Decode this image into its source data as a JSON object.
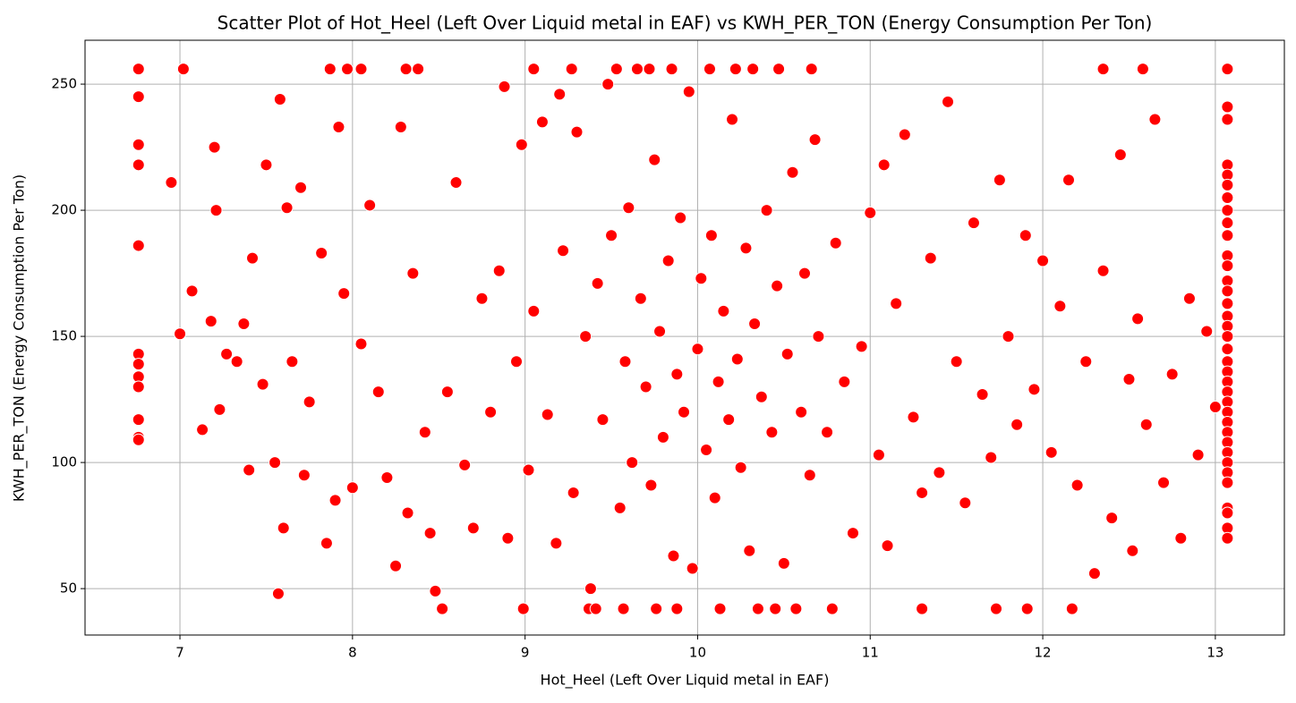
{
  "chart_data": {
    "type": "scatter",
    "title": "Scatter Plot of Hot_Heel (Left Over Liquid metal in EAF) vs KWH_PER_TON (Energy Consumption Per Ton)",
    "x_label": "Hot_Heel (Left Over Liquid metal in EAF)",
    "y_label": "KWH_PER_TON (Energy Consumption Per Ton)",
    "color": "#ff0000",
    "grid": true,
    "xlim": [
      6.45,
      13.4
    ],
    "ylim": [
      31.6,
      267.4
    ],
    "xticks": [
      7,
      8,
      9,
      10,
      11,
      12,
      13
    ],
    "yticks": [
      50,
      100,
      150,
      200,
      250
    ],
    "x": [
      6.76,
      6.76,
      6.76,
      6.76,
      6.76,
      6.76,
      6.76,
      6.76,
      6.76,
      6.76,
      6.76,
      6.76,
      13.07,
      13.07,
      13.07,
      13.07,
      13.07,
      13.07,
      13.07,
      13.07,
      13.07,
      13.07,
      13.07,
      13.07,
      13.07,
      13.07,
      13.07,
      13.07,
      13.07,
      13.07,
      13.07,
      13.07,
      13.07,
      13.07,
      13.07,
      13.07,
      13.07,
      13.07,
      13.07,
      13.07,
      13.07,
      13.07,
      13.07,
      13.07,
      13.07,
      13.07,
      13.07,
      13.07,
      7.02,
      7.87,
      7.97,
      8.05,
      8.31,
      8.38,
      9.05,
      9.27,
      9.53,
      9.65,
      9.72,
      9.85,
      10.07,
      10.22,
      10.32,
      10.47,
      10.66,
      12.35,
      12.58,
      8.52,
      8.99,
      9.37,
      9.41,
      9.57,
      9.76,
      9.88,
      10.13,
      10.35,
      10.45,
      10.57,
      10.78,
      11.3,
      11.73,
      11.91,
      12.17,
      6.95,
      7.0,
      7.07,
      7.13,
      7.18,
      7.2,
      7.21,
      7.23,
      7.27,
      7.33,
      7.37,
      7.4,
      7.42,
      7.48,
      7.5,
      7.55,
      7.57,
      7.58,
      7.6,
      7.62,
      7.65,
      7.7,
      7.72,
      7.75,
      7.82,
      7.85,
      7.9,
      7.92,
      7.95,
      8.0,
      8.05,
      8.1,
      8.15,
      8.2,
      8.25,
      8.28,
      8.32,
      8.35,
      8.42,
      8.45,
      8.48,
      8.55,
      8.6,
      8.65,
      8.7,
      8.75,
      8.8,
      8.85,
      8.88,
      8.9,
      8.95,
      8.98,
      9.02,
      9.05,
      9.1,
      9.13,
      9.18,
      9.2,
      9.22,
      9.28,
      9.3,
      9.35,
      9.38,
      9.42,
      9.45,
      9.48,
      9.5,
      9.55,
      9.58,
      9.6,
      9.62,
      9.67,
      9.7,
      9.73,
      9.75,
      9.78,
      9.8,
      9.83,
      9.86,
      9.88,
      9.9,
      9.92,
      9.95,
      9.97,
      10.0,
      10.02,
      10.05,
      10.08,
      10.1,
      10.12,
      10.15,
      10.18,
      10.2,
      10.23,
      10.25,
      10.28,
      10.3,
      10.33,
      10.37,
      10.4,
      10.43,
      10.46,
      10.5,
      10.52,
      10.55,
      10.6,
      10.62,
      10.65,
      10.68,
      10.7,
      10.75,
      10.8,
      10.85,
      10.9,
      10.95,
      11.0,
      11.05,
      11.08,
      11.1,
      11.15,
      11.2,
      11.25,
      11.3,
      11.35,
      11.4,
      11.45,
      11.5,
      11.55,
      11.6,
      11.65,
      11.7,
      11.75,
      11.8,
      11.85,
      11.9,
      11.95,
      12.0,
      12.05,
      12.1,
      12.15,
      12.2,
      12.25,
      12.3,
      12.35,
      12.4,
      12.45,
      12.5,
      12.52,
      12.55,
      12.6,
      12.65,
      12.7,
      12.75,
      12.8,
      12.85,
      12.9,
      12.95,
      13.0
    ],
    "values": [
      256,
      245,
      226,
      218,
      186,
      143,
      139,
      134,
      130,
      117,
      110,
      109,
      256,
      241,
      236,
      218,
      214,
      210,
      205,
      200,
      195,
      190,
      182,
      178,
      172,
      168,
      163,
      158,
      154,
      150,
      145,
      140,
      136,
      132,
      128,
      124,
      120,
      116,
      112,
      108,
      104,
      100,
      96,
      92,
      82,
      80,
      74,
      70,
      256,
      256,
      256,
      256,
      256,
      256,
      256,
      256,
      256,
      256,
      256,
      256,
      256,
      256,
      256,
      256,
      256,
      256,
      256,
      42,
      42,
      42,
      42,
      42,
      42,
      42,
      42,
      42,
      42,
      42,
      42,
      42,
      42,
      42,
      42,
      211,
      151,
      168,
      113,
      156,
      225,
      200,
      121,
      143,
      140,
      155,
      97,
      181,
      131,
      218,
      100,
      48,
      244,
      74,
      201,
      140,
      209,
      95,
      124,
      183,
      68,
      85,
      233,
      167,
      90,
      147,
      202,
      128,
      94,
      59,
      233,
      80,
      175,
      112,
      72,
      49,
      128,
      211,
      99,
      74,
      165,
      120,
      176,
      249,
      70,
      140,
      226,
      97,
      160,
      235,
      119,
      68,
      246,
      184,
      88,
      231,
      150,
      50,
      171,
      117,
      250,
      190,
      82,
      140,
      201,
      100,
      165,
      130,
      91,
      220,
      152,
      110,
      180,
      63,
      135,
      197,
      120,
      247,
      58,
      145,
      173,
      105,
      190,
      86,
      132,
      160,
      117,
      236,
      141,
      98,
      185,
      65,
      155,
      126,
      200,
      112,
      170,
      60,
      143,
      215,
      120,
      175,
      95,
      228,
      150,
      112,
      187,
      132,
      72,
      146,
      199,
      103,
      218,
      67,
      163,
      230,
      118,
      88,
      181,
      96,
      243,
      140,
      84,
      195,
      127,
      102,
      212,
      150,
      115,
      190,
      129,
      180,
      104,
      162,
      212,
      91,
      140,
      56,
      176,
      78,
      222,
      133,
      65,
      157,
      115,
      236,
      92,
      135,
      70,
      165,
      103,
      152,
      122
    ]
  }
}
